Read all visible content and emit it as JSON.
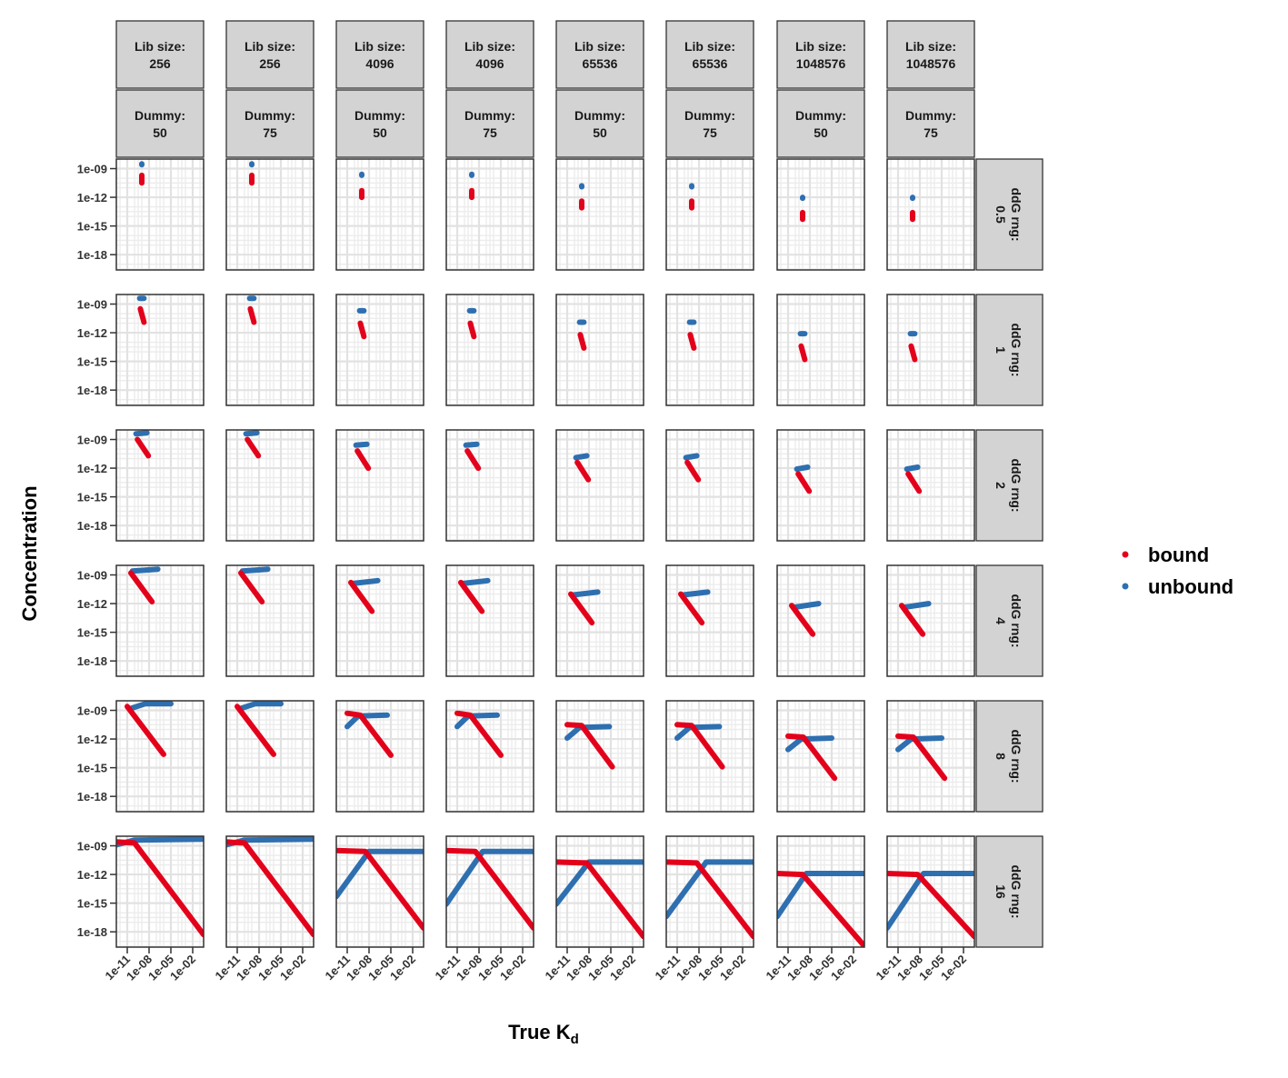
{
  "chart_data": {
    "type": "scatter",
    "title": "",
    "xlabel_main": "True K",
    "xlabel_sub": "d",
    "ylabel": "Concentration",
    "x_scale": "log10",
    "y_scale": "log10",
    "x_ticks": [
      "1e-11",
      "1e-08",
      "1e-05",
      "1e-02"
    ],
    "y_ticks": [
      "1e-09",
      "1e-12",
      "1e-15",
      "1e-18"
    ],
    "grid": true,
    "legend_position": "right",
    "legend": [
      {
        "name": "bound",
        "color": "#e3001b"
      },
      {
        "name": "unbound",
        "color": "#2e6fb0"
      }
    ],
    "columns": [
      {
        "lib_label": "Lib size:",
        "lib": "256",
        "dummy_label": "Dummy:",
        "dummy": "50"
      },
      {
        "lib_label": "Lib size:",
        "lib": "256",
        "dummy_label": "Dummy:",
        "dummy": "75"
      },
      {
        "lib_label": "Lib size:",
        "lib": "4096",
        "dummy_label": "Dummy:",
        "dummy": "50"
      },
      {
        "lib_label": "Lib size:",
        "lib": "4096",
        "dummy_label": "Dummy:",
        "dummy": "75"
      },
      {
        "lib_label": "Lib size:",
        "lib": "65536",
        "dummy_label": "Dummy:",
        "dummy": "50"
      },
      {
        "lib_label": "Lib size:",
        "lib": "65536",
        "dummy_label": "Dummy:",
        "dummy": "75"
      },
      {
        "lib_label": "Lib size:",
        "lib": "1048576",
        "dummy_label": "Dummy:",
        "dummy": "50"
      },
      {
        "lib_label": "Lib size:",
        "lib": "1048576",
        "dummy_label": "Dummy:",
        "dummy": "75"
      }
    ],
    "rows": [
      {
        "label": "ddG rng:",
        "value": "0.5"
      },
      {
        "label": "ddG rng:",
        "value": "1"
      },
      {
        "label": "ddG rng:",
        "value": "2"
      },
      {
        "label": "ddG rng:",
        "value": "4"
      },
      {
        "label": "ddG rng:",
        "value": "8"
      },
      {
        "label": "ddG rng:",
        "value": "16"
      }
    ],
    "panels": [
      {
        "bound": [
          [
            -9.0,
            -9.7
          ],
          [
            -9.0,
            -10.5
          ]
        ],
        "unbound": [
          [
            -9.0,
            -8.5
          ],
          [
            -9.0,
            -8.6
          ]
        ]
      },
      {
        "bound": [
          [
            -9.0,
            -9.7
          ],
          [
            -9.0,
            -10.5
          ]
        ],
        "unbound": [
          [
            -9.0,
            -8.5
          ],
          [
            -9.0,
            -8.6
          ]
        ]
      },
      {
        "bound": [
          [
            -9.0,
            -11.3
          ],
          [
            -9.0,
            -12.0
          ]
        ],
        "unbound": [
          [
            -9.0,
            -9.6
          ],
          [
            -9.0,
            -9.7
          ]
        ]
      },
      {
        "bound": [
          [
            -9.0,
            -11.3
          ],
          [
            -9.0,
            -12.0
          ]
        ],
        "unbound": [
          [
            -9.0,
            -9.6
          ],
          [
            -9.0,
            -9.7
          ]
        ]
      },
      {
        "bound": [
          [
            -9.0,
            -12.4
          ],
          [
            -9.0,
            -13.1
          ]
        ],
        "unbound": [
          [
            -9.0,
            -10.8
          ],
          [
            -9.0,
            -10.9
          ]
        ]
      },
      {
        "bound": [
          [
            -9.0,
            -12.4
          ],
          [
            -9.0,
            -13.1
          ]
        ],
        "unbound": [
          [
            -9.0,
            -10.8
          ],
          [
            -9.0,
            -10.9
          ]
        ]
      },
      {
        "bound": [
          [
            -9.0,
            -13.6
          ],
          [
            -9.0,
            -14.3
          ]
        ],
        "unbound": [
          [
            -9.0,
            -12.0
          ],
          [
            -9.0,
            -12.1
          ]
        ]
      },
      {
        "bound": [
          [
            -9.0,
            -13.6
          ],
          [
            -9.0,
            -14.3
          ]
        ],
        "unbound": [
          [
            -9.0,
            -12.0
          ],
          [
            -9.0,
            -12.1
          ]
        ]
      },
      {
        "bound": [
          [
            -9.2,
            -9.5
          ],
          [
            -8.7,
            -10.9
          ]
        ],
        "unbound": [
          [
            -9.3,
            -8.4
          ],
          [
            -8.7,
            -8.4
          ]
        ]
      },
      {
        "bound": [
          [
            -9.2,
            -9.5
          ],
          [
            -8.7,
            -10.9
          ]
        ],
        "unbound": [
          [
            -9.3,
            -8.4
          ],
          [
            -8.7,
            -8.4
          ]
        ]
      },
      {
        "bound": [
          [
            -9.2,
            -11.0
          ],
          [
            -8.7,
            -12.4
          ]
        ],
        "unbound": [
          [
            -9.3,
            -9.7
          ],
          [
            -8.7,
            -9.7
          ]
        ]
      },
      {
        "bound": [
          [
            -9.2,
            -11.0
          ],
          [
            -8.7,
            -12.4
          ]
        ],
        "unbound": [
          [
            -9.3,
            -9.7
          ],
          [
            -8.7,
            -9.7
          ]
        ]
      },
      {
        "bound": [
          [
            -9.2,
            -12.2
          ],
          [
            -8.7,
            -13.6
          ]
        ],
        "unbound": [
          [
            -9.3,
            -10.9
          ],
          [
            -8.7,
            -10.9
          ]
        ]
      },
      {
        "bound": [
          [
            -9.2,
            -12.2
          ],
          [
            -8.7,
            -13.6
          ]
        ],
        "unbound": [
          [
            -9.3,
            -10.9
          ],
          [
            -8.7,
            -10.9
          ]
        ]
      },
      {
        "bound": [
          [
            -9.2,
            -13.4
          ],
          [
            -8.7,
            -14.8
          ]
        ],
        "unbound": [
          [
            -9.3,
            -12.1
          ],
          [
            -8.7,
            -12.1
          ]
        ]
      },
      {
        "bound": [
          [
            -9.2,
            -13.4
          ],
          [
            -8.7,
            -14.8
          ]
        ],
        "unbound": [
          [
            -9.3,
            -12.1
          ],
          [
            -8.7,
            -12.1
          ]
        ]
      },
      {
        "bound": [
          [
            -9.6,
            -9.0
          ],
          [
            -8.1,
            -10.7
          ]
        ],
        "unbound": [
          [
            -9.8,
            -8.4
          ],
          [
            -8.3,
            -8.3
          ]
        ]
      },
      {
        "bound": [
          [
            -9.6,
            -9.0
          ],
          [
            -8.1,
            -10.7
          ]
        ],
        "unbound": [
          [
            -9.8,
            -8.4
          ],
          [
            -8.3,
            -8.3
          ]
        ]
      },
      {
        "bound": [
          [
            -9.6,
            -10.2
          ],
          [
            -8.1,
            -12.0
          ]
        ],
        "unbound": [
          [
            -9.8,
            -9.6
          ],
          [
            -8.3,
            -9.5
          ]
        ]
      },
      {
        "bound": [
          [
            -9.6,
            -10.2
          ],
          [
            -8.1,
            -12.0
          ]
        ],
        "unbound": [
          [
            -9.8,
            -9.6
          ],
          [
            -8.3,
            -9.5
          ]
        ]
      },
      {
        "bound": [
          [
            -9.6,
            -11.4
          ],
          [
            -8.1,
            -13.2
          ]
        ],
        "unbound": [
          [
            -9.8,
            -10.9
          ],
          [
            -8.3,
            -10.7
          ]
        ]
      },
      {
        "bound": [
          [
            -9.6,
            -11.4
          ],
          [
            -8.1,
            -13.2
          ]
        ],
        "unbound": [
          [
            -9.8,
            -10.9
          ],
          [
            -8.3,
            -10.7
          ]
        ]
      },
      {
        "bound": [
          [
            -9.6,
            -12.6
          ],
          [
            -8.1,
            -14.4
          ]
        ],
        "unbound": [
          [
            -9.8,
            -12.1
          ],
          [
            -8.3,
            -11.9
          ]
        ]
      },
      {
        "bound": [
          [
            -9.6,
            -12.6
          ],
          [
            -8.1,
            -14.4
          ]
        ],
        "unbound": [
          [
            -9.8,
            -12.1
          ],
          [
            -8.3,
            -11.9
          ]
        ]
      },
      {
        "bound": [
          [
            -10.5,
            -8.8
          ],
          [
            -7.6,
            -11.8
          ]
        ],
        "unbound": [
          [
            -10.3,
            -8.6
          ],
          [
            -6.8,
            -8.4
          ]
        ]
      },
      {
        "bound": [
          [
            -10.5,
            -8.8
          ],
          [
            -7.6,
            -11.8
          ]
        ],
        "unbound": [
          [
            -10.3,
            -8.6
          ],
          [
            -6.8,
            -8.4
          ]
        ]
      },
      {
        "bound": [
          [
            -10.5,
            -9.8
          ],
          [
            -7.6,
            -12.8
          ]
        ],
        "unbound": [
          [
            -10.3,
            -9.9
          ],
          [
            -6.8,
            -9.6
          ]
        ]
      },
      {
        "bound": [
          [
            -10.5,
            -9.8
          ],
          [
            -7.6,
            -12.8
          ]
        ],
        "unbound": [
          [
            -10.3,
            -9.9
          ],
          [
            -6.8,
            -9.6
          ]
        ]
      },
      {
        "bound": [
          [
            -10.5,
            -11.0
          ],
          [
            -7.6,
            -14.0
          ]
        ],
        "unbound": [
          [
            -10.3,
            -11.1
          ],
          [
            -6.8,
            -10.8
          ]
        ]
      },
      {
        "bound": [
          [
            -10.5,
            -11.0
          ],
          [
            -7.6,
            -14.0
          ]
        ],
        "unbound": [
          [
            -10.3,
            -11.1
          ],
          [
            -6.8,
            -10.8
          ]
        ]
      },
      {
        "bound": [
          [
            -10.5,
            -12.2
          ],
          [
            -7.6,
            -15.2
          ]
        ],
        "unbound": [
          [
            -10.3,
            -12.4
          ],
          [
            -6.8,
            -12.0
          ]
        ]
      },
      {
        "bound": [
          [
            -10.5,
            -12.2
          ],
          [
            -7.6,
            -15.2
          ]
        ],
        "unbound": [
          [
            -10.3,
            -12.4
          ],
          [
            -6.8,
            -12.0
          ]
        ]
      },
      {
        "bound": [
          [
            -11.0,
            -8.6
          ],
          [
            -6.0,
            -13.6
          ]
        ],
        "unbound": [
          [
            -10.5,
            -8.8
          ],
          [
            -8.5,
            -8.3
          ],
          [
            -5.0,
            -8.3
          ]
        ]
      },
      {
        "bound": [
          [
            -11.0,
            -8.6
          ],
          [
            -6.0,
            -13.6
          ]
        ],
        "unbound": [
          [
            -10.5,
            -8.8
          ],
          [
            -8.5,
            -8.3
          ],
          [
            -5.0,
            -8.3
          ]
        ]
      },
      {
        "bound": [
          [
            -11.0,
            -9.3
          ],
          [
            -9.2,
            -9.5
          ],
          [
            -5.0,
            -13.7
          ]
        ],
        "unbound": [
          [
            -11.0,
            -10.7
          ],
          [
            -9.5,
            -9.6
          ],
          [
            -5.5,
            -9.5
          ]
        ]
      },
      {
        "bound": [
          [
            -11.0,
            -9.3
          ],
          [
            -9.2,
            -9.5
          ],
          [
            -5.0,
            -13.7
          ]
        ],
        "unbound": [
          [
            -11.0,
            -10.7
          ],
          [
            -9.5,
            -9.6
          ],
          [
            -5.5,
            -9.5
          ]
        ]
      },
      {
        "bound": [
          [
            -11.0,
            -10.5
          ],
          [
            -9.0,
            -10.6
          ],
          [
            -4.8,
            -14.9
          ]
        ],
        "unbound": [
          [
            -11.0,
            -11.9
          ],
          [
            -9.3,
            -10.8
          ],
          [
            -5.2,
            -10.7
          ]
        ]
      },
      {
        "bound": [
          [
            -11.0,
            -10.5
          ],
          [
            -9.0,
            -10.6
          ],
          [
            -4.8,
            -14.9
          ]
        ],
        "unbound": [
          [
            -11.0,
            -11.9
          ],
          [
            -9.3,
            -10.8
          ],
          [
            -5.2,
            -10.7
          ]
        ]
      },
      {
        "bound": [
          [
            -11.0,
            -11.7
          ],
          [
            -8.9,
            -11.8
          ],
          [
            -4.6,
            -16.1
          ]
        ],
        "unbound": [
          [
            -11.0,
            -13.1
          ],
          [
            -9.2,
            -12.0
          ],
          [
            -5.0,
            -11.9
          ]
        ]
      },
      {
        "bound": [
          [
            -11.0,
            -11.7
          ],
          [
            -8.9,
            -11.8
          ],
          [
            -4.6,
            -16.1
          ]
        ],
        "unbound": [
          [
            -11.0,
            -13.1
          ],
          [
            -9.2,
            -12.0
          ],
          [
            -5.0,
            -11.9
          ]
        ]
      },
      {
        "bound": [
          [
            -12.5,
            -8.6
          ],
          [
            -10.0,
            -8.7
          ],
          [
            -0.5,
            -18.3
          ]
        ],
        "unbound": [
          [
            -12.5,
            -8.9
          ],
          [
            -10.0,
            -8.4
          ],
          [
            -0.5,
            -8.3
          ]
        ]
      },
      {
        "bound": [
          [
            -12.5,
            -8.6
          ],
          [
            -10.0,
            -8.7
          ],
          [
            -0.5,
            -18.3
          ]
        ],
        "unbound": [
          [
            -12.5,
            -8.9
          ],
          [
            -10.0,
            -8.4
          ],
          [
            -0.5,
            -8.3
          ]
        ]
      },
      {
        "bound": [
          [
            -12.5,
            -9.5
          ],
          [
            -8.5,
            -9.6
          ],
          [
            -0.5,
            -17.6
          ]
        ],
        "unbound": [
          [
            -12.5,
            -14.3
          ],
          [
            -8.0,
            -9.6
          ],
          [
            -0.5,
            -9.6
          ]
        ]
      },
      {
        "bound": [
          [
            -12.5,
            -9.5
          ],
          [
            -8.5,
            -9.6
          ],
          [
            -0.5,
            -17.6
          ]
        ],
        "unbound": [
          [
            -12.5,
            -15.1
          ],
          [
            -7.5,
            -9.6
          ],
          [
            -0.5,
            -9.6
          ]
        ]
      },
      {
        "bound": [
          [
            -12.5,
            -10.7
          ],
          [
            -8.3,
            -10.8
          ],
          [
            -0.5,
            -18.5
          ]
        ],
        "unbound": [
          [
            -12.5,
            -15.1
          ],
          [
            -8.0,
            -10.7
          ],
          [
            -0.5,
            -10.7
          ]
        ]
      },
      {
        "bound": [
          [
            -12.5,
            -10.7
          ],
          [
            -8.3,
            -10.8
          ],
          [
            -0.5,
            -18.5
          ]
        ],
        "unbound": [
          [
            -12.5,
            -16.4
          ],
          [
            -7.0,
            -10.7
          ],
          [
            -0.5,
            -10.7
          ]
        ]
      },
      {
        "bound": [
          [
            -12.5,
            -11.9
          ],
          [
            -9.0,
            -12.0
          ],
          [
            -0.5,
            -19.5
          ]
        ],
        "unbound": [
          [
            -12.5,
            -16.4
          ],
          [
            -8.5,
            -11.9
          ],
          [
            -0.5,
            -11.9
          ]
        ]
      },
      {
        "bound": [
          [
            -12.5,
            -11.9
          ],
          [
            -8.3,
            -12.0
          ],
          [
            -0.5,
            -18.5
          ]
        ],
        "unbound": [
          [
            -12.5,
            -17.6
          ],
          [
            -7.5,
            -11.9
          ],
          [
            -0.5,
            -11.9
          ]
        ]
      }
    ]
  }
}
